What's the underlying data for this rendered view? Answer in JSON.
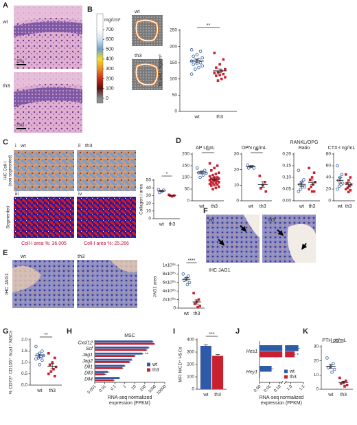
{
  "labels": {
    "letters": [
      "A",
      "B",
      "C",
      "D",
      "E",
      "F",
      "G",
      "H",
      "I",
      "J",
      "K"
    ],
    "a_wt": "wt",
    "a_th3": "th3",
    "a_scale": "250µ",
    "b_wt": "wt",
    "b_th3": "th3",
    "c_i": "i",
    "c_ii": "ii",
    "c_iii": "iii",
    "c_iv": "iv",
    "c_wt": "wt",
    "c_th3": "th3",
    "c_row1": [
      "IHC Coll-I",
      "(non segmented)"
    ],
    "c_row2": "Segmented",
    "c_area_wt": "Coll-I area %: 36.005",
    "c_area_th3": "Coll-I area %: 25.266",
    "e_wt": "wt",
    "e_th3": "th3",
    "e_stain": "IHC JAG1",
    "f_wt": "wt",
    "f_th3": "th3",
    "f_stain": "IHC JAG1"
  },
  "colorbar": {
    "label": "mg/cm³",
    "ticks": [
      700,
      600,
      500,
      400,
      300,
      200,
      100,
      0
    ],
    "colors": [
      "#ffffff",
      "#cfe3ee",
      "#6f9fc9",
      "#f1df2a",
      "#ec8a22",
      "#cc2a17",
      "#5a0f0f",
      "#8c8c8c"
    ]
  },
  "chart_data": [
    {
      "type": "dot",
      "ylabel": "Tb.BMD mg/cm³",
      "categories": [
        "wt",
        "th3"
      ],
      "values": [
        [
          190,
          185,
          175,
          170,
          165,
          160,
          158,
          155,
          150,
          148,
          145,
          140,
          135,
          130,
          115
        ],
        [
          180,
          160,
          145,
          135,
          130,
          125,
          120,
          118,
          115,
          112,
          110,
          105,
          100,
          95
        ]
      ],
      "means": [
        155,
        125
      ],
      "errors": [
        6,
        6
      ],
      "colors": [
        "#2e5aa8",
        "#c8202f"
      ],
      "markers": [
        "circle-open",
        "square"
      ],
      "ylim": [
        0,
        250
      ],
      "yticks": [
        0,
        50,
        100,
        150,
        200,
        250
      ],
      "annotation": "**"
    },
    {
      "type": "dot",
      "ylabel": "Collagen I area",
      "categories": [
        "wt",
        "th3"
      ],
      "values": [
        [
          38,
          37,
          35,
          34
        ],
        [
          31,
          30,
          29,
          30
        ]
      ],
      "means": [
        36,
        30
      ],
      "errors": [
        1,
        0.5
      ],
      "colors": [
        "#2e5aa8",
        "#c8202f"
      ],
      "markers": [
        "circle-open",
        "square"
      ],
      "ylim": [
        0,
        50
      ],
      "yticks": [
        0,
        10,
        20,
        30,
        40,
        50
      ],
      "annotation": "*"
    },
    {
      "type": "dot",
      "title": [
        "AP U/mL"
      ],
      "categories": [
        "wt",
        "th3"
      ],
      "values": [
        [
          140,
          130,
          125,
          120,
          118,
          110,
          100
        ],
        [
          160,
          150,
          140,
          130,
          120,
          115,
          110,
          105,
          100,
          100,
          95,
          95,
          90,
          90,
          88,
          85,
          85,
          80,
          80,
          78,
          75,
          72,
          70,
          68,
          65,
          60,
          55,
          50
        ]
      ],
      "means": [
        120,
        93
      ],
      "errors": [
        5,
        5
      ],
      "colors": [
        "#2e5aa8",
        "#c8202f"
      ],
      "markers": [
        "circle-open",
        "square"
      ],
      "ylim": [
        0,
        200
      ],
      "yticks": [
        0,
        50,
        100,
        150,
        200
      ],
      "annotation": "**"
    },
    {
      "type": "dot",
      "title": [
        "OPN ng/mL"
      ],
      "categories": [
        "wt",
        "th3"
      ],
      "values": [
        [
          23,
          22,
          22,
          21,
          21
        ],
        [
          16,
          12,
          10,
          8,
          6
        ]
      ],
      "means": [
        22,
        10.4
      ],
      "errors": [
        0.4,
        1.7
      ],
      "colors": [
        "#2e5aa8",
        "#c8202f"
      ],
      "markers": [
        "circle-open",
        "square"
      ],
      "ylim": [
        0,
        30
      ],
      "yticks": [
        0,
        10,
        20,
        30
      ],
      "annotation": "**"
    },
    {
      "type": "dot",
      "title": [
        "RANKL/OPG",
        "Ratio"
      ],
      "categories": [
        "wt",
        "th3"
      ],
      "values": [
        [
          0.13,
          0.09,
          0.08,
          0.07,
          0.06,
          0.06,
          0.05,
          0.04
        ],
        [
          0.14,
          0.12,
          0.1,
          0.09,
          0.08,
          0.07,
          0.06,
          0.05,
          0.04,
          0.04
        ]
      ],
      "means": [
        0.07,
        0.079
      ],
      "errors": [
        0.01,
        0.01
      ],
      "colors": [
        "#2e5aa8",
        "#c8202f"
      ],
      "markers": [
        "circle-open",
        "square"
      ],
      "ylim": [
        0,
        0.2
      ],
      "yticks": [
        {
          "value": 0,
          "label": "0.00"
        },
        0.05,
        {
          "value": 0.1,
          "label": "0.10"
        },
        0.15,
        {
          "value": 0.2,
          "label": "0.20"
        }
      ]
    },
    {
      "type": "dot",
      "title": [
        "CTX-I ng/mL"
      ],
      "categories": [
        "wt",
        "th3"
      ],
      "values": [
        [
          60,
          45,
          40,
          35,
          30,
          28,
          25,
          20
        ],
        [
          45,
          40,
          35,
          30,
          28,
          25,
          22,
          20,
          18,
          15
        ]
      ],
      "means": [
        35,
        28
      ],
      "errors": [
        4.5,
        3
      ],
      "colors": [
        "#2e5aa8",
        "#c8202f"
      ],
      "markers": [
        "circle-open",
        "square"
      ],
      "ylim": [
        0,
        80
      ],
      "yticks": [
        0,
        20,
        40,
        60,
        80
      ]
    },
    {
      "type": "dot",
      "ylabel": "JAG1 area",
      "categories": [
        "wt",
        "th3"
      ],
      "values": [
        [
          800000,
          750000,
          700000,
          650000,
          600000,
          550000
        ],
        [
          350000,
          200000,
          150000,
          100000,
          50000,
          20000
        ]
      ],
      "means": [
        675000,
        145000
      ],
      "errors": [
        38000,
        50000
      ],
      "colors": [
        "#2e5aa8",
        "#c8202f"
      ],
      "markers": [
        "circle-open",
        "square"
      ],
      "ylim": [
        0,
        1000000
      ],
      "yticks": [
        0,
        {
          "value": 200000,
          "label": "2x10⁰⁵"
        },
        {
          "value": 400000,
          "label": "4x10⁰⁵"
        },
        {
          "value": 600000,
          "label": "6x10⁰⁵"
        },
        {
          "value": 800000,
          "label": "8x10⁰⁵"
        },
        {
          "value": 1000000,
          "label": "1x10⁰⁶"
        }
      ],
      "annotation": "****"
    },
    {
      "type": "dot",
      "ylabel": "% CD73⁺ CD105⁺ Sca1⁺ MSCs",
      "categories": [
        "wt",
        "th3"
      ],
      "values": [
        [
          1.7,
          1.5,
          1.4,
          1.35,
          1.3,
          1.25,
          1.2,
          1.15,
          1.1,
          0.9
        ],
        [
          1.4,
          1.2,
          1.0,
          0.9,
          0.8,
          0.7,
          0.6,
          0.5,
          0.4
        ]
      ],
      "means": [
        1.29,
        0.83
      ],
      "errors": [
        0.07,
        0.11
      ],
      "colors": [
        "#2e5aa8",
        "#c8202f"
      ],
      "markers": [
        "circle-open",
        "square"
      ],
      "ylim": [
        0,
        2
      ],
      "yticks": [
        {
          "value": 0,
          "label": "0.0"
        },
        0.5,
        {
          "value": 1,
          "label": "1.0"
        },
        1.5,
        {
          "value": 2,
          "label": "2.0"
        }
      ],
      "annotation": "**"
    },
    {
      "type": "hbar",
      "title": "MSC",
      "xlabel": [
        "RNA-seq normalized",
        "expression (FPKM)"
      ],
      "categories": [
        "Cxcl12",
        "Scf",
        "Jag1",
        "Jag2",
        "Dll1",
        "Dll3",
        "Dll4"
      ],
      "series": [
        {
          "name": "wt",
          "color": "#2e5aa8",
          "values": [
            600,
            250,
            60,
            5,
            1,
            0.02,
            0.3
          ],
          "errors": [
            150,
            50,
            15,
            1,
            0.2,
            0.01,
            0.05
          ]
        },
        {
          "name": "th3",
          "color": "#c8202f",
          "values": [
            900,
            150,
            10,
            3,
            0.6,
            0.01,
            0.08
          ],
          "errors": [
            200,
            40,
            3,
            0.8,
            0.1,
            0.005,
            0.02
          ]
        }
      ],
      "xscale": "log",
      "xlim": [
        0.001,
        10000
      ],
      "xticks": [
        0.001,
        0.01,
        0.1,
        1,
        10,
        100,
        1000,
        10000
      ],
      "annotation": "**"
    },
    {
      "type": "bar",
      "ylabel": "MFI NICD⁺ HSCs",
      "categories": [
        "wt",
        "th3"
      ],
      "values": [
        350,
        270
      ],
      "errors": [
        8,
        10
      ],
      "colors": [
        "#2e5aa8",
        "#c8202f"
      ],
      "ylim": [
        0,
        400
      ],
      "yticks": [
        0,
        100,
        200,
        300,
        400
      ],
      "annotation": "***"
    },
    {
      "type": "hbar",
      "xlabel": [
        "RNA-seq normalized",
        "expression (FPKM)"
      ],
      "categories": [
        "Hes1",
        "Hey1"
      ],
      "series": [
        {
          "name": "wt",
          "color": "#2e5aa8",
          "values": [
            1.3,
            0.06
          ],
          "errors": [
            0.05,
            0.01
          ]
        },
        {
          "name": "th3",
          "color": "#c8202f",
          "values": [
            1.15,
            0.003
          ],
          "errors": [
            0.03,
            0.001
          ]
        }
      ],
      "xlim": [
        0,
        1.5
      ],
      "xbreak": [
        0.11,
        0.8
      ],
      "xticks": [
        {
          "value": 0,
          "label": "0.00"
        },
        0.05,
        {
          "value": 0.1,
          "label": "0.10"
        },
        {
          "value": 1,
          "label": "1.0"
        },
        1.5
      ],
      "annotation": "*"
    },
    {
      "type": "dot",
      "title": [
        "PTH pg/mL"
      ],
      "categories": [
        "wt",
        "th3"
      ],
      "values": [
        [
          22,
          18,
          16,
          15,
          14,
          12
        ],
        [
          8,
          6,
          5,
          4,
          3,
          2
        ]
      ],
      "means": [
        16.2,
        4.7
      ],
      "errors": [
        1.5,
        0.9
      ],
      "colors": [
        "#2e5aa8",
        "#c8202f"
      ],
      "markers": [
        "circle-open",
        "square"
      ],
      "ylim": [
        0,
        30
      ],
      "yticks": [
        0,
        10,
        20,
        30
      ],
      "annotation": "**"
    }
  ]
}
